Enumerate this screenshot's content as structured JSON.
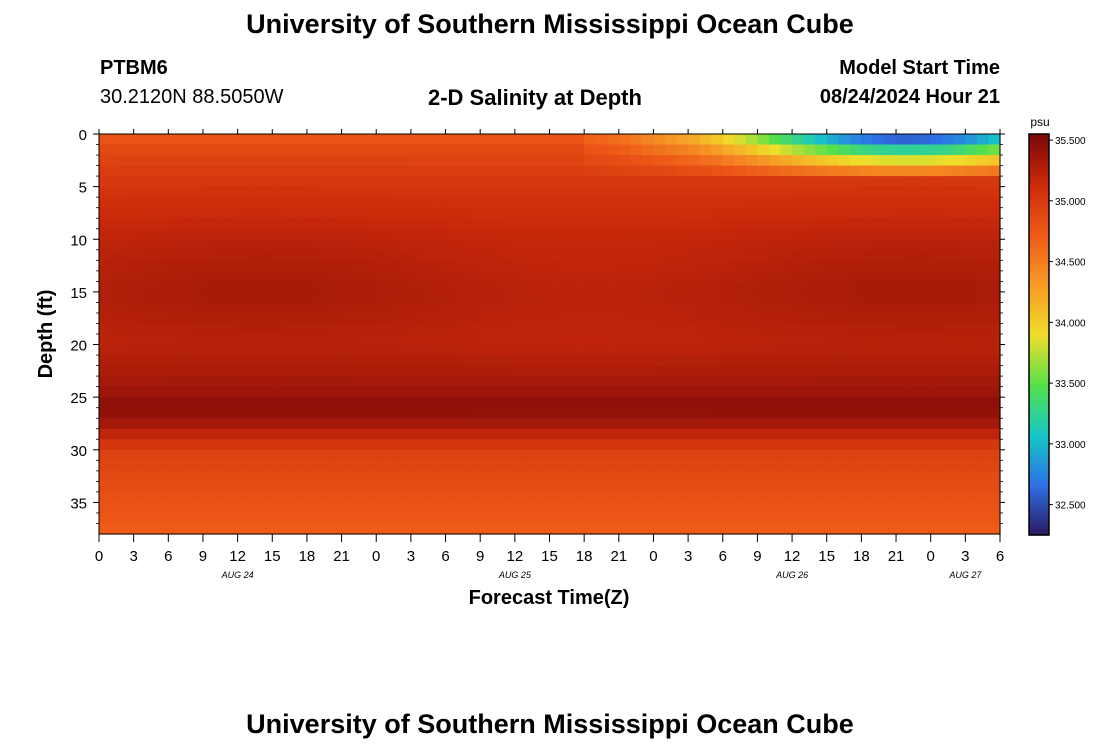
{
  "header": {
    "title": "University of Southern Mississippi Ocean Cube",
    "station": "PTBM6",
    "coordinates": "30.2120N  88.5050W",
    "plot_title": "2-D Salinity at Depth",
    "model_start_label": "Model Start Time",
    "model_start_time": "08/24/2024 Hour 21"
  },
  "footer": {
    "title": "University of Southern Mississippi Ocean Cube"
  },
  "colors": {
    "ramp": [
      "#2a1a5e",
      "#2e6fe6",
      "#16c8c8",
      "#55e04a",
      "#f0de2a",
      "#f79a26",
      "#ee5a18",
      "#cc2a0a",
      "#7a0808"
    ]
  },
  "chart_data": {
    "type": "heatmap",
    "title": "2-D Salinity at Depth",
    "xlabel": "Forecast Time(Z)",
    "ylabel": "Depth (ft)",
    "x_ticks": [
      "0",
      "3",
      "6",
      "9",
      "12",
      "15",
      "18",
      "21",
      "0",
      "3",
      "6",
      "9",
      "12",
      "15",
      "18",
      "21",
      "0",
      "3",
      "6",
      "9",
      "12",
      "15",
      "18",
      "21",
      "0",
      "3",
      "6"
    ],
    "x_hours_range": [
      0,
      78
    ],
    "date_labels": [
      {
        "label": "AUG 24",
        "hour": 12
      },
      {
        "label": "AUG 25",
        "hour": 36
      },
      {
        "label": "AUG 26",
        "hour": 60
      },
      {
        "label": "AUG 27",
        "hour": 75
      }
    ],
    "y_ticks": [
      "0",
      "5",
      "10",
      "15",
      "20",
      "25",
      "30",
      "35"
    ],
    "y_tick_values": [
      0,
      5,
      10,
      15,
      20,
      25,
      30,
      35
    ],
    "ylim": [
      0,
      38
    ],
    "colorbar": {
      "unit": "psu",
      "range": [
        32.25,
        35.55
      ],
      "labels": [
        "35.500",
        "35.000",
        "34.500",
        "34.000",
        "33.500",
        "33.000",
        "32.500"
      ],
      "label_values": [
        35.5,
        35.0,
        34.5,
        34.0,
        33.5,
        33.0,
        32.5
      ]
    },
    "salinity_profile": {
      "depths": [
        0,
        2,
        5,
        10,
        15,
        20,
        24,
        26,
        28,
        30,
        35,
        38
      ],
      "values": [
        34.75,
        34.9,
        35.05,
        35.2,
        35.28,
        35.22,
        35.35,
        35.48,
        35.3,
        34.95,
        34.8,
        34.7
      ],
      "freshening_event": {
        "start_hour": 42,
        "surface_salinity_min": 32.3,
        "min_hour": 70,
        "layer_depth": 4.5
      }
    }
  }
}
